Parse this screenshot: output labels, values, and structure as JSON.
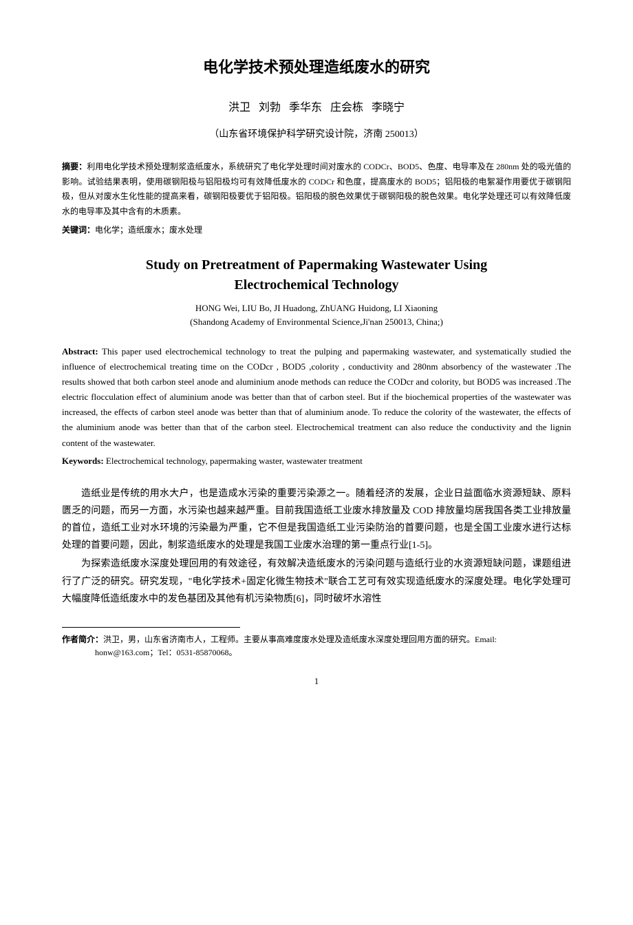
{
  "title_cn": "电化学技术预处理造纸废水的研究",
  "authors_cn": "洪卫  刘勃  季华东  庄会栋  李晓宁",
  "affiliation_cn": "（山东省环境保护科学研究设计院，济南  250013）",
  "abstract_cn_label": "摘要：",
  "abstract_cn_text": "利用电化学技术预处理制浆造纸废水，系统研究了电化学处理时间对废水的 CODCr、BOD5、色度、电导率及在 280nm 处的吸光值的影响。试验结果表明，使用碳钢阳极与铝阳极均可有效降低废水的 CODCr 和色度，提高废水的 BOD5；铝阳极的电絮凝作用要优于碳钢阳极，但从对废水生化性能的提高来看，碳钢阳极要优于铝阳极。铝阳极的脱色效果优于碳钢阳极的脱色效果。电化学处理还可以有效降低废水的电导率及其中含有的木质素。",
  "keywords_cn_label": "关键词：",
  "keywords_cn_text": "电化学；造纸废水；废水处理",
  "title_en_line1": "Study on Pretreatment of Papermaking Wastewater Using",
  "title_en_line2": "Electrochemical Technology",
  "authors_en": "HONG Wei,  LIU Bo, JI Huadong, ZhUANG Huidong, LI Xiaoning",
  "affiliation_en": "(Shandong Academy of Environmental Science,Ji'nan 250013, China;)",
  "abstract_en_label": "Abstract:",
  "abstract_en_text": " This paper used electrochemical technology to treat the pulping and papermaking wastewater, and systematically studied the influence of electrochemical treating time on the CODcr , BOD5 ,colority , conductivity and 280nm absorbency of the wastewater .The results showed that both carbon steel anode and aluminium anode methods can reduce the CODcr and colority, but BOD5 was increased .The electric flocculation effect of aluminium anode was better than that of carbon steel. But if the biochemical properties of the wastewater was increased, the effects of carbon steel anode was better than that of aluminium anode. To reduce the colority of the wastewater, the effects of the aluminium anode was better than that of the carbon steel. Electrochemical treatment can also reduce the conductivity and the lignin content of the wastewater.",
  "keywords_en_label": "Keywords:",
  "keywords_en_text": " Electrochemical technology, papermaking waster, wastewater treatment",
  "body_p1": "造纸业是传统的用水大户，也是造成水污染的重要污染源之一。随着经济的发展，企业日益面临水资源短缺、原料匮乏的问题，而另一方面，水污染也越来越严重。目前我国造纸工业废水排放量及 COD 排放量均居我国各类工业排放量的首位，造纸工业对水环境的污染最为严重，它不但是我国造纸工业污染防治的首要问题，也是全国工业废水进行达标处理的首要问题，因此，制浆造纸废水的处理是我国工业废水治理的第一重点行业[1-5]。",
  "body_p2": "为探索造纸废水深度处理回用的有效途径，有效解决造纸废水的污染问题与造纸行业的水资源短缺问题，课题组进行了广泛的研究。研究发现，\"电化学技术+固定化微生物技术\"联合工艺可有效实现造纸废水的深度处理。电化学处理可大幅度降低造纸废水中的发色基团及其他有机污染物质[6]，同时破坏水溶性",
  "footnote_label": "作者简介：",
  "footnote_text": "洪卫，男，山东省济南市人，工程师。主要从事高难度废水处理及造纸废水深度处理回用方面的研究。Email:",
  "footnote_line2": "honw@163.com；Tel：0531-85870068。",
  "page_number": "1"
}
